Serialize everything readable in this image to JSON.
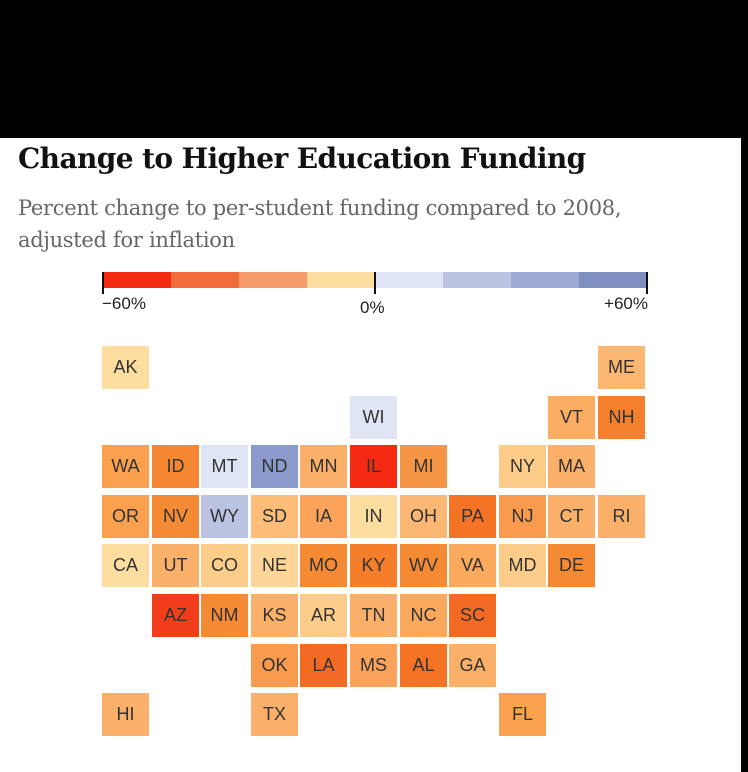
{
  "header": {
    "title": "Change to Higher Education Funding",
    "subtitle": "Percent change to per-student funding compared to 2008, adjusted for inflation"
  },
  "chart_data": {
    "type": "heatmap",
    "title": "Change to Higher Education Funding",
    "subtitle": "Percent change to per-student funding compared to 2008, adjusted for inflation",
    "legend": {
      "placement": "top",
      "min": -60,
      "max": 60,
      "min_label": "−60%",
      "mid_label": "0%",
      "max_label": "+60%",
      "bins": [
        {
          "from": -60,
          "to": -45,
          "color": "#f42a13"
        },
        {
          "from": -45,
          "to": -30,
          "color": "#f26b3d"
        },
        {
          "from": -30,
          "to": -15,
          "color": "#f59b69"
        },
        {
          "from": -15,
          "to": 0,
          "color": "#fddda0"
        },
        {
          "from": 0,
          "to": 15,
          "color": "#dfe5f5"
        },
        {
          "from": 15,
          "to": 30,
          "color": "#bac4e0"
        },
        {
          "from": 30,
          "to": 45,
          "color": "#9eaad5"
        },
        {
          "from": 45,
          "to": 60,
          "color": "#7e8fc1"
        }
      ]
    },
    "states": [
      {
        "code": "AK",
        "row": 0,
        "col": 0,
        "color": "#fddda0"
      },
      {
        "code": "ME",
        "row": 0,
        "col": 10,
        "color": "#fbb772"
      },
      {
        "code": "WI",
        "row": 1,
        "col": 5,
        "color": "#dfe5f5"
      },
      {
        "code": "VT",
        "row": 1,
        "col": 9,
        "color": "#fbae63"
      },
      {
        "code": "NH",
        "row": 1,
        "col": 10,
        "color": "#f47f2c"
      },
      {
        "code": "WA",
        "row": 2,
        "col": 0,
        "color": "#f9a14f"
      },
      {
        "code": "ID",
        "row": 2,
        "col": 1,
        "color": "#f58732"
      },
      {
        "code": "MT",
        "row": 2,
        "col": 2,
        "color": "#dfe5f5"
      },
      {
        "code": "ND",
        "row": 2,
        "col": 3,
        "color": "#8a9bcb"
      },
      {
        "code": "MN",
        "row": 2,
        "col": 4,
        "color": "#fbb06a"
      },
      {
        "code": "IL",
        "row": 2,
        "col": 5,
        "color": "#f42a13"
      },
      {
        "code": "MI",
        "row": 2,
        "col": 6,
        "color": "#f69545"
      },
      {
        "code": "NY",
        "row": 2,
        "col": 8,
        "color": "#fccc88"
      },
      {
        "code": "MA",
        "row": 2,
        "col": 9,
        "color": "#fbb06a"
      },
      {
        "code": "OR",
        "row": 3,
        "col": 0,
        "color": "#f9a14f"
      },
      {
        "code": "NV",
        "row": 3,
        "col": 1,
        "color": "#f58a35"
      },
      {
        "code": "WY",
        "row": 3,
        "col": 2,
        "color": "#bac4e0"
      },
      {
        "code": "SD",
        "row": 3,
        "col": 3,
        "color": "#fbbd78"
      },
      {
        "code": "IA",
        "row": 3,
        "col": 4,
        "color": "#fba35a"
      },
      {
        "code": "IN",
        "row": 3,
        "col": 5,
        "color": "#fddda0"
      },
      {
        "code": "OH",
        "row": 3,
        "col": 6,
        "color": "#fbb874"
      },
      {
        "code": "PA",
        "row": 3,
        "col": 7,
        "color": "#f47324"
      },
      {
        "code": "NJ",
        "row": 3,
        "col": 8,
        "color": "#f99b4e"
      },
      {
        "code": "CT",
        "row": 3,
        "col": 9,
        "color": "#fbb06a"
      },
      {
        "code": "RI",
        "row": 3,
        "col": 10,
        "color": "#fbb06a"
      },
      {
        "code": "CA",
        "row": 4,
        "col": 0,
        "color": "#fddda0"
      },
      {
        "code": "UT",
        "row": 4,
        "col": 1,
        "color": "#fbb06a"
      },
      {
        "code": "CO",
        "row": 4,
        "col": 2,
        "color": "#fccd8a"
      },
      {
        "code": "NE",
        "row": 4,
        "col": 3,
        "color": "#fdd596"
      },
      {
        "code": "MO",
        "row": 4,
        "col": 4,
        "color": "#f58a35"
      },
      {
        "code": "KY",
        "row": 4,
        "col": 5,
        "color": "#f47e2a"
      },
      {
        "code": "WV",
        "row": 4,
        "col": 6,
        "color": "#f58a35"
      },
      {
        "code": "VA",
        "row": 4,
        "col": 7,
        "color": "#fbaa5d"
      },
      {
        "code": "MD",
        "row": 4,
        "col": 8,
        "color": "#fccd8a"
      },
      {
        "code": "DE",
        "row": 4,
        "col": 9,
        "color": "#f58a35"
      },
      {
        "code": "AZ",
        "row": 5,
        "col": 1,
        "color": "#f23d1a"
      },
      {
        "code": "NM",
        "row": 5,
        "col": 2,
        "color": "#f58a35"
      },
      {
        "code": "KS",
        "row": 5,
        "col": 3,
        "color": "#fbb06a"
      },
      {
        "code": "AR",
        "row": 5,
        "col": 4,
        "color": "#fccd8a"
      },
      {
        "code": "TN",
        "row": 5,
        "col": 5,
        "color": "#fbb06a"
      },
      {
        "code": "NC",
        "row": 5,
        "col": 6,
        "color": "#fbaa5d"
      },
      {
        "code": "SC",
        "row": 5,
        "col": 7,
        "color": "#f26a23"
      },
      {
        "code": "OK",
        "row": 6,
        "col": 3,
        "color": "#f99b4e"
      },
      {
        "code": "LA",
        "row": 6,
        "col": 4,
        "color": "#f26a23"
      },
      {
        "code": "MS",
        "row": 6,
        "col": 5,
        "color": "#fba35a"
      },
      {
        "code": "AL",
        "row": 6,
        "col": 6,
        "color": "#f47324"
      },
      {
        "code": "GA",
        "row": 6,
        "col": 7,
        "color": "#fbb06a"
      },
      {
        "code": "HI",
        "row": 7,
        "col": 0,
        "color": "#fbb06a"
      },
      {
        "code": "TX",
        "row": 7,
        "col": 3,
        "color": "#fbb06a"
      },
      {
        "code": "FL",
        "row": 7,
        "col": 8,
        "color": "#f9a14f"
      }
    ]
  }
}
